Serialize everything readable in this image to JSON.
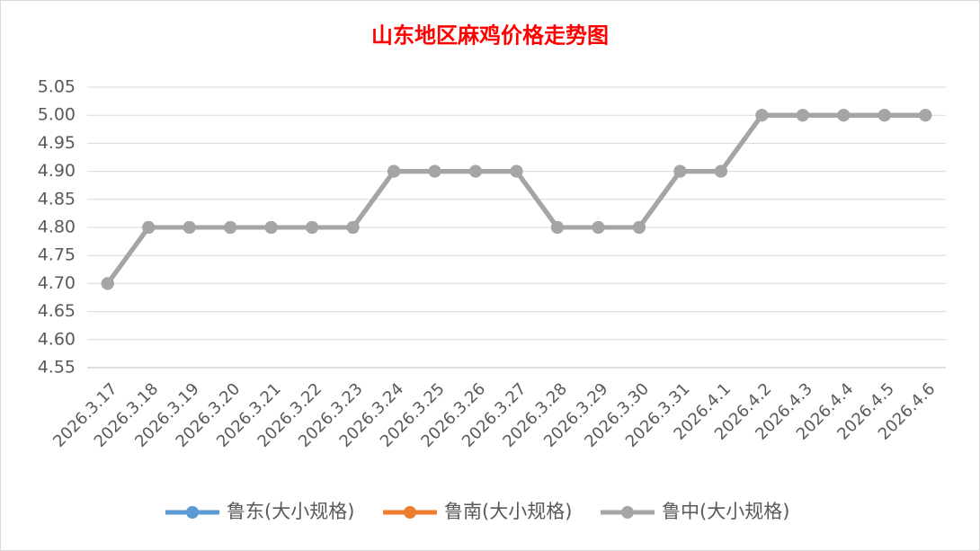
{
  "chart_data": {
    "type": "line",
    "title": "山东地区麻鸡价格走势图",
    "categories": [
      "2026.3.17",
      "2026.3.18",
      "2026.3.19",
      "2026.3.20",
      "2026.3.21",
      "2026.3.22",
      "2026.3.23",
      "2026.3.24",
      "2026.3.25",
      "2026.3.26",
      "2026.3.27",
      "2026.3.28",
      "2026.3.29",
      "2026.3.30",
      "2026.3.31",
      "2026.4.1",
      "2026.4.2",
      "2026.4.3",
      "2026.4.4",
      "2026.4.5",
      "2026.4.6"
    ],
    "series": [
      {
        "name": "鲁东(大小规格)",
        "color": "#5b9bd5",
        "values": [
          4.7,
          4.8,
          4.8,
          4.8,
          4.8,
          4.8,
          4.8,
          4.9,
          4.9,
          4.9,
          4.9,
          4.8,
          4.8,
          4.8,
          4.9,
          4.9,
          5.0,
          5.0,
          5.0,
          5.0,
          5.0
        ]
      },
      {
        "name": "鲁南(大小规格)",
        "color": "#ed7d31",
        "values": [
          4.7,
          4.8,
          4.8,
          4.8,
          4.8,
          4.8,
          4.8,
          4.9,
          4.9,
          4.9,
          4.9,
          4.8,
          4.8,
          4.8,
          4.9,
          4.9,
          5.0,
          5.0,
          5.0,
          5.0,
          5.0
        ]
      },
      {
        "name": "鲁中(大小规格)",
        "color": "#a5a5a5",
        "values": [
          4.7,
          4.8,
          4.8,
          4.8,
          4.8,
          4.8,
          4.8,
          4.9,
          4.9,
          4.9,
          4.9,
          4.8,
          4.8,
          4.8,
          4.9,
          4.9,
          5.0,
          5.0,
          5.0,
          5.0,
          5.0
        ]
      }
    ],
    "ylim": [
      4.55,
      5.05
    ],
    "yticks": [
      4.55,
      {
        "value": 4.6,
        "label": "4.60"
      },
      4.65,
      {
        "value": 4.7,
        "label": "4.70"
      },
      4.75,
      {
        "value": 4.8,
        "label": "4.80"
      },
      4.85,
      {
        "value": 4.9,
        "label": "4.90"
      },
      4.95,
      {
        "value": 5.0,
        "label": "5.00"
      },
      5.05
    ],
    "grid": true,
    "legend": "bottom"
  }
}
